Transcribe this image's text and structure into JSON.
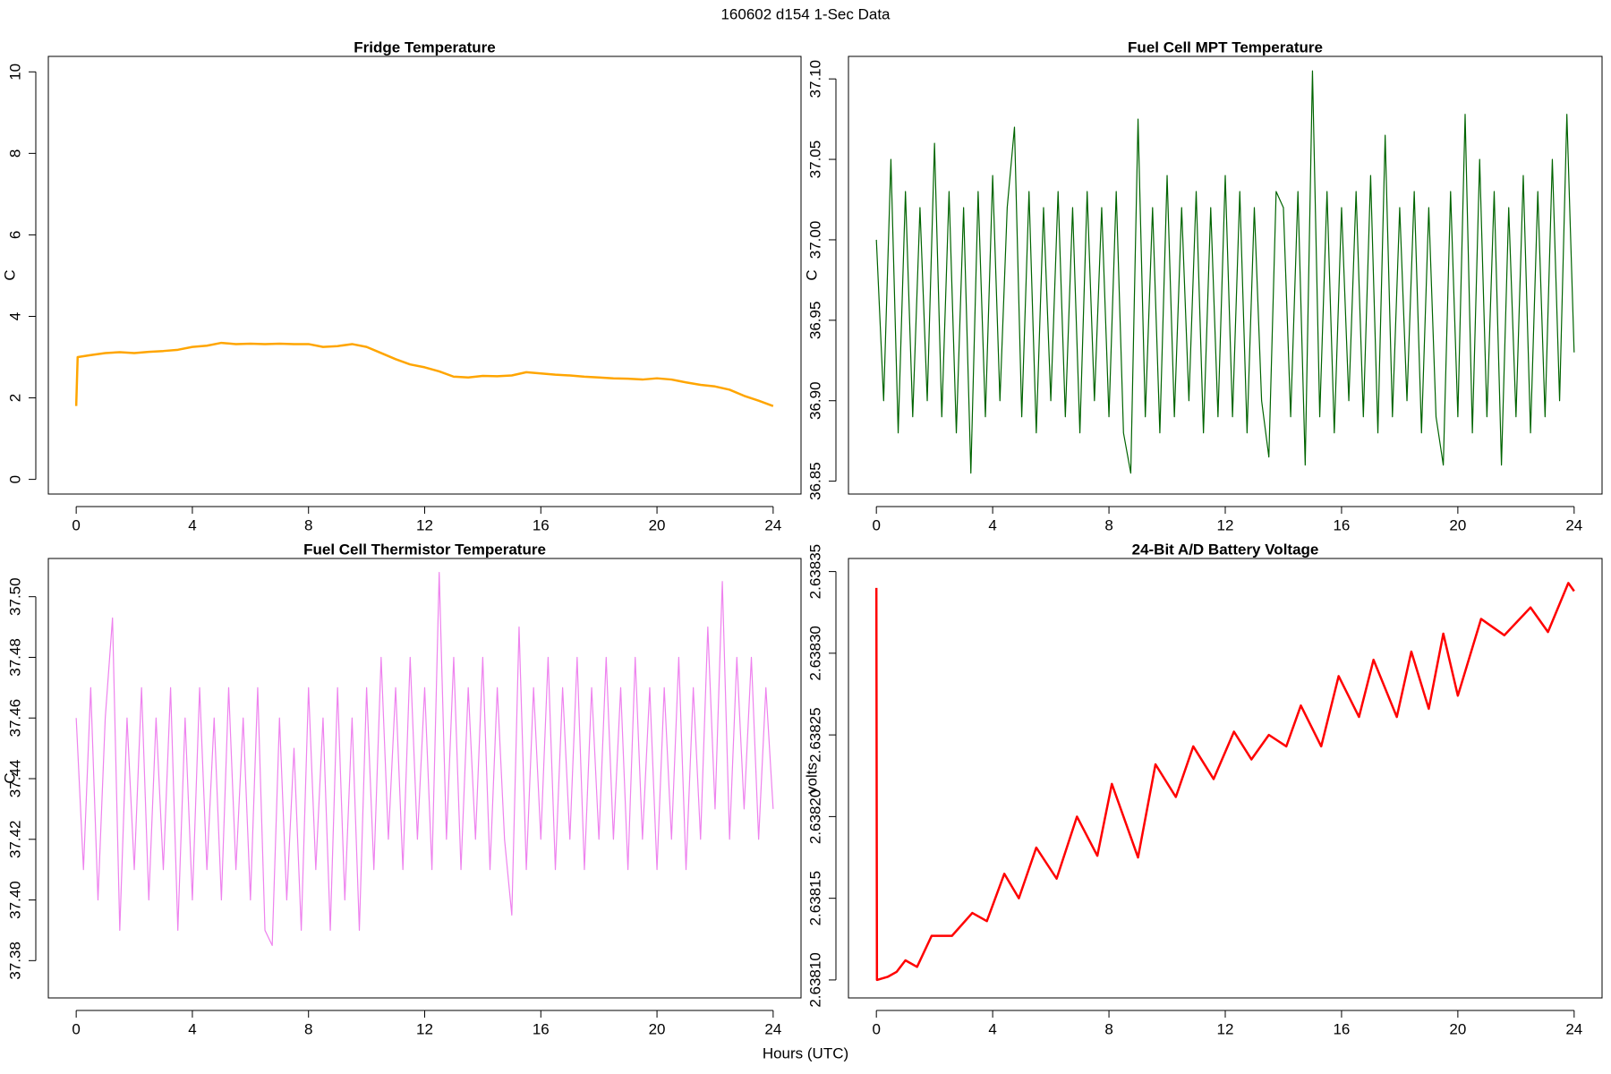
{
  "title": "160602   d154   1-Sec Data",
  "x_label": "Hours (UTC)",
  "chart_data": [
    {
      "type": "line",
      "title": "Fridge Temperature",
      "y_label": "C",
      "color": "#ffa500",
      "x": [
        0,
        0.05,
        0.5,
        1,
        1.5,
        2,
        2.5,
        3,
        3.5,
        4,
        4.5,
        5,
        5.5,
        6,
        6.5,
        7,
        7.5,
        8,
        8.5,
        9,
        9.5,
        10,
        10.5,
        11,
        11.5,
        12,
        12.5,
        13,
        13.5,
        14,
        14.5,
        15,
        15.5,
        16,
        16.5,
        17,
        17.5,
        18,
        18.5,
        19,
        19.5,
        20,
        20.5,
        21,
        21.5,
        22,
        22.5,
        23,
        23.5,
        24
      ],
      "values": [
        1.8,
        3.0,
        3.05,
        3.1,
        3.12,
        3.1,
        3.13,
        3.15,
        3.18,
        3.25,
        3.28,
        3.35,
        3.32,
        3.33,
        3.32,
        3.33,
        3.32,
        3.32,
        3.25,
        3.27,
        3.32,
        3.25,
        3.1,
        2.95,
        2.82,
        2.75,
        2.65,
        2.52,
        2.5,
        2.54,
        2.53,
        2.55,
        2.63,
        2.6,
        2.57,
        2.55,
        2.52,
        2.5,
        2.48,
        2.47,
        2.45,
        2.48,
        2.45,
        2.38,
        2.32,
        2.28,
        2.2,
        2.05,
        1.93,
        1.8
      ],
      "xlim": [
        -0.96,
        24.96
      ],
      "xticks": [
        0,
        4,
        8,
        12,
        16,
        20,
        24
      ],
      "ylim": [
        -0.36,
        10.38
      ],
      "yticks": [
        0,
        2,
        4,
        6,
        8,
        10
      ]
    },
    {
      "type": "line",
      "title": "Fuel Cell MPT Temperature",
      "y_label": "C",
      "color": "#006400",
      "x": [
        0,
        0.25,
        0.5,
        0.75,
        1,
        1.25,
        1.5,
        1.75,
        2,
        2.25,
        2.5,
        2.75,
        3,
        3.25,
        3.5,
        3.75,
        4,
        4.25,
        4.5,
        4.75,
        5,
        5.25,
        5.5,
        5.75,
        6,
        6.25,
        6.5,
        6.75,
        7,
        7.25,
        7.5,
        7.75,
        8,
        8.25,
        8.5,
        8.75,
        9,
        9.25,
        9.5,
        9.75,
        10,
        10.25,
        10.5,
        10.75,
        11,
        11.25,
        11.5,
        11.75,
        12,
        12.25,
        12.5,
        12.75,
        13,
        13.25,
        13.5,
        13.75,
        14,
        14.25,
        14.5,
        14.75,
        15,
        15.25,
        15.5,
        15.75,
        16,
        16.25,
        16.5,
        16.75,
        17,
        17.25,
        17.5,
        17.75,
        18,
        18.25,
        18.5,
        18.75,
        19,
        19.25,
        19.5,
        19.75,
        20,
        20.25,
        20.5,
        20.75,
        21,
        21.25,
        21.5,
        21.75,
        22,
        22.25,
        22.5,
        22.75,
        23,
        23.25,
        23.5,
        23.75,
        24
      ],
      "values": [
        37.0,
        36.9,
        37.05,
        36.88,
        37.03,
        36.89,
        37.02,
        36.9,
        37.06,
        36.89,
        37.03,
        36.88,
        37.02,
        36.855,
        37.03,
        36.89,
        37.04,
        36.9,
        37.02,
        37.07,
        36.89,
        37.03,
        36.88,
        37.02,
        36.9,
        37.03,
        36.89,
        37.02,
        36.88,
        37.03,
        36.9,
        37.02,
        36.89,
        37.03,
        36.88,
        36.855,
        37.075,
        36.89,
        37.02,
        36.88,
        37.04,
        36.89,
        37.02,
        36.9,
        37.03,
        36.88,
        37.02,
        36.89,
        37.04,
        36.89,
        37.03,
        36.88,
        37.02,
        36.9,
        36.865,
        37.03,
        37.02,
        36.89,
        37.03,
        36.86,
        37.105,
        36.89,
        37.03,
        36.88,
        37.02,
        36.9,
        37.03,
        36.89,
        37.04,
        36.88,
        37.065,
        36.89,
        37.02,
        36.9,
        37.03,
        36.88,
        37.02,
        36.89,
        36.86,
        37.03,
        36.89,
        37.078,
        36.88,
        37.05,
        36.89,
        37.03,
        36.86,
        37.02,
        36.89,
        37.04,
        36.88,
        37.03,
        36.89,
        37.05,
        36.9,
        37.078,
        36.93
      ],
      "xlim": [
        -0.96,
        24.96
      ],
      "xticks": [
        0,
        4,
        8,
        12,
        16,
        20,
        24
      ],
      "ylim": [
        36.842,
        37.114
      ],
      "yticks": [
        36.85,
        {
          "value": 36.9,
          "label": "36.90"
        },
        36.95,
        {
          "value": 37.0,
          "label": "37.00"
        },
        37.05,
        {
          "value": 37.1,
          "label": "37.10"
        }
      ]
    },
    {
      "type": "line",
      "title": "Fuel Cell Thermistor Temperature",
      "y_label": "C",
      "color": "#ee82ee",
      "x": [
        0,
        0.25,
        0.5,
        0.75,
        1,
        1.25,
        1.5,
        1.75,
        2,
        2.25,
        2.5,
        2.75,
        3,
        3.25,
        3.5,
        3.75,
        4,
        4.25,
        4.5,
        4.75,
        5,
        5.25,
        5.5,
        5.75,
        6,
        6.25,
        6.5,
        6.75,
        7,
        7.25,
        7.5,
        7.75,
        8,
        8.25,
        8.5,
        8.75,
        9,
        9.25,
        9.5,
        9.75,
        10,
        10.25,
        10.5,
        10.75,
        11,
        11.25,
        11.5,
        11.75,
        12,
        12.25,
        12.5,
        12.75,
        13,
        13.25,
        13.5,
        13.75,
        14,
        14.25,
        14.5,
        14.75,
        15,
        15.25,
        15.5,
        15.75,
        16,
        16.25,
        16.5,
        16.75,
        17,
        17.25,
        17.5,
        17.75,
        18,
        18.25,
        18.5,
        18.75,
        19,
        19.25,
        19.5,
        19.75,
        20,
        20.25,
        20.5,
        20.75,
        21,
        21.25,
        21.5,
        21.75,
        22,
        22.25,
        22.5,
        22.75,
        23,
        23.25,
        23.5,
        23.75,
        24
      ],
      "values": [
        37.46,
        37.41,
        37.47,
        37.4,
        37.46,
        37.493,
        37.39,
        37.46,
        37.41,
        37.47,
        37.4,
        37.46,
        37.41,
        37.47,
        37.39,
        37.46,
        37.4,
        37.47,
        37.41,
        37.46,
        37.4,
        37.47,
        37.41,
        37.46,
        37.4,
        37.47,
        37.39,
        37.385,
        37.46,
        37.4,
        37.45,
        37.39,
        37.47,
        37.41,
        37.46,
        37.39,
        37.47,
        37.4,
        37.46,
        37.39,
        37.47,
        37.41,
        37.48,
        37.42,
        37.47,
        37.41,
        37.48,
        37.42,
        37.47,
        37.41,
        37.508,
        37.42,
        37.48,
        37.41,
        37.47,
        37.42,
        37.48,
        37.41,
        37.47,
        37.42,
        37.395,
        37.49,
        37.41,
        37.47,
        37.42,
        37.48,
        37.41,
        37.47,
        37.42,
        37.48,
        37.41,
        37.47,
        37.42,
        37.48,
        37.42,
        37.47,
        37.41,
        37.48,
        37.42,
        37.47,
        37.41,
        37.47,
        37.42,
        37.48,
        37.41,
        37.47,
        37.42,
        37.49,
        37.43,
        37.505,
        37.42,
        37.48,
        37.43,
        37.48,
        37.42,
        37.47,
        37.43
      ],
      "xlim": [
        -0.96,
        24.96
      ],
      "xticks": [
        0,
        4,
        8,
        12,
        16,
        20,
        24
      ],
      "ylim": [
        37.3677,
        37.5126
      ],
      "yticks": [
        37.38,
        {
          "value": 37.4,
          "label": "37.40"
        },
        37.42,
        37.44,
        37.46,
        37.48,
        {
          "value": 37.5,
          "label": "37.50"
        }
      ]
    },
    {
      "type": "line",
      "title": "24-Bit A/D Battery Voltage",
      "y_label": "volts",
      "color": "#ff0000",
      "x": [
        0,
        0.02,
        0.4,
        0.7,
        1.0,
        1.4,
        1.9,
        2.6,
        3.3,
        3.8,
        4.4,
        4.9,
        5.5,
        6.2,
        6.9,
        7.6,
        8.1,
        9.0,
        9.6,
        10.3,
        10.9,
        11.6,
        12.3,
        12.9,
        13.5,
        14.1,
        14.6,
        15.3,
        15.9,
        16.6,
        17.1,
        17.9,
        18.4,
        19.0,
        19.5,
        20.0,
        20.8,
        21.6,
        22.5,
        23.1,
        23.8,
        24.0
      ],
      "values": [
        2.63834,
        2.6381,
        2.638102,
        2.638105,
        2.638112,
        2.638108,
        2.638127,
        2.638127,
        2.638141,
        2.638136,
        2.638165,
        2.63815,
        2.638181,
        2.638162,
        2.6382,
        2.638176,
        2.63822,
        2.638175,
        2.638232,
        2.638212,
        2.638243,
        2.638223,
        2.638252,
        2.638235,
        2.63825,
        2.638243,
        2.638268,
        2.638243,
        2.638286,
        2.638261,
        2.638296,
        2.638261,
        2.638301,
        2.638266,
        2.638312,
        2.638274,
        2.638321,
        2.638311,
        2.638328,
        2.638313,
        2.638343,
        2.638338
      ],
      "xlim": [
        -0.96,
        24.96
      ],
      "xticks": [
        0,
        4,
        8,
        12,
        16,
        20,
        24
      ],
      "ylim": [
        2.638089,
        2.638358
      ],
      "yticks": [
        {
          "value": 2.6381,
          "label": "2.63810"
        },
        2.63815,
        {
          "value": 2.6382,
          "label": "2.63820"
        },
        2.63825,
        {
          "value": 2.6383,
          "label": "2.63830"
        },
        2.63835
      ]
    }
  ]
}
